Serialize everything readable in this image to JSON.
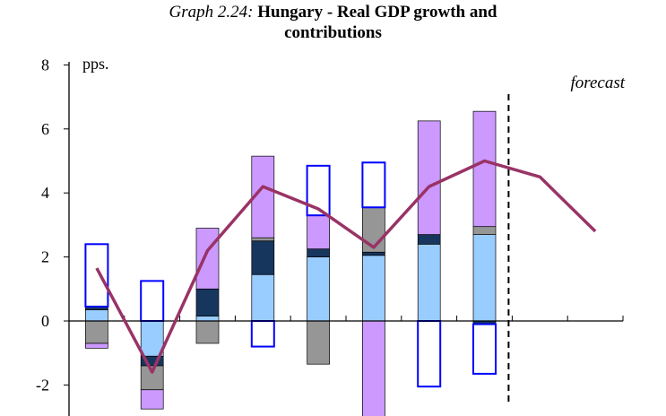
{
  "title_prefix": "Graph 2.24:",
  "title_line1": "Hungary - Real GDP growth and",
  "title_line2": "contributions",
  "colors": {
    "light_blue": "#99CCFF",
    "dark_navy": "#17365D",
    "grey": "#969696",
    "violet": "#CC99FF",
    "outline_blue": "#0000FF",
    "gdp_line": "#993366"
  },
  "chart_data": {
    "type": "bar",
    "stacked": true,
    "ylim": [
      -3,
      8
    ],
    "yticks": [
      8,
      6,
      4,
      2,
      0,
      -2
    ],
    "ylabel": "pps.",
    "forecast_label": "forecast",
    "forecast_after_index": 7,
    "categories": [
      "",
      "",
      "",
      "",
      "",
      "",
      "",
      "",
      "",
      ""
    ],
    "series": [
      {
        "values": [
          0.35,
          -1.1,
          0.15,
          1.45,
          2.0,
          2.05,
          2.4,
          2.7,
          null,
          null
        ],
        "color": "#99CCFF"
      },
      {
        "values": [
          0.1,
          -0.3,
          0.85,
          1.05,
          0.25,
          0.1,
          0.3,
          -0.1,
          null,
          null
        ],
        "color": "#17365D"
      },
      {
        "values": [
          -0.7,
          -0.75,
          -0.7,
          0.1,
          -1.35,
          1.4,
          0.0,
          0.25,
          null,
          null
        ],
        "color": "#969696"
      },
      {
        "values": [
          -0.15,
          -0.6,
          1.9,
          2.55,
          1.05,
          -3.1,
          3.55,
          3.6,
          null,
          null
        ],
        "color": "#CC99FF"
      },
      {
        "values": [
          1.95,
          1.25,
          0.0,
          -0.8,
          1.55,
          1.4,
          -2.05,
          -1.55,
          null,
          null
        ],
        "color": "#0000FF",
        "outline": true
      }
    ],
    "line": {
      "type": "line",
      "values": [
        1.65,
        -1.6,
        2.2,
        4.2,
        3.5,
        2.3,
        4.2,
        5.0,
        4.5,
        2.8
      ],
      "color": "#993366"
    }
  }
}
